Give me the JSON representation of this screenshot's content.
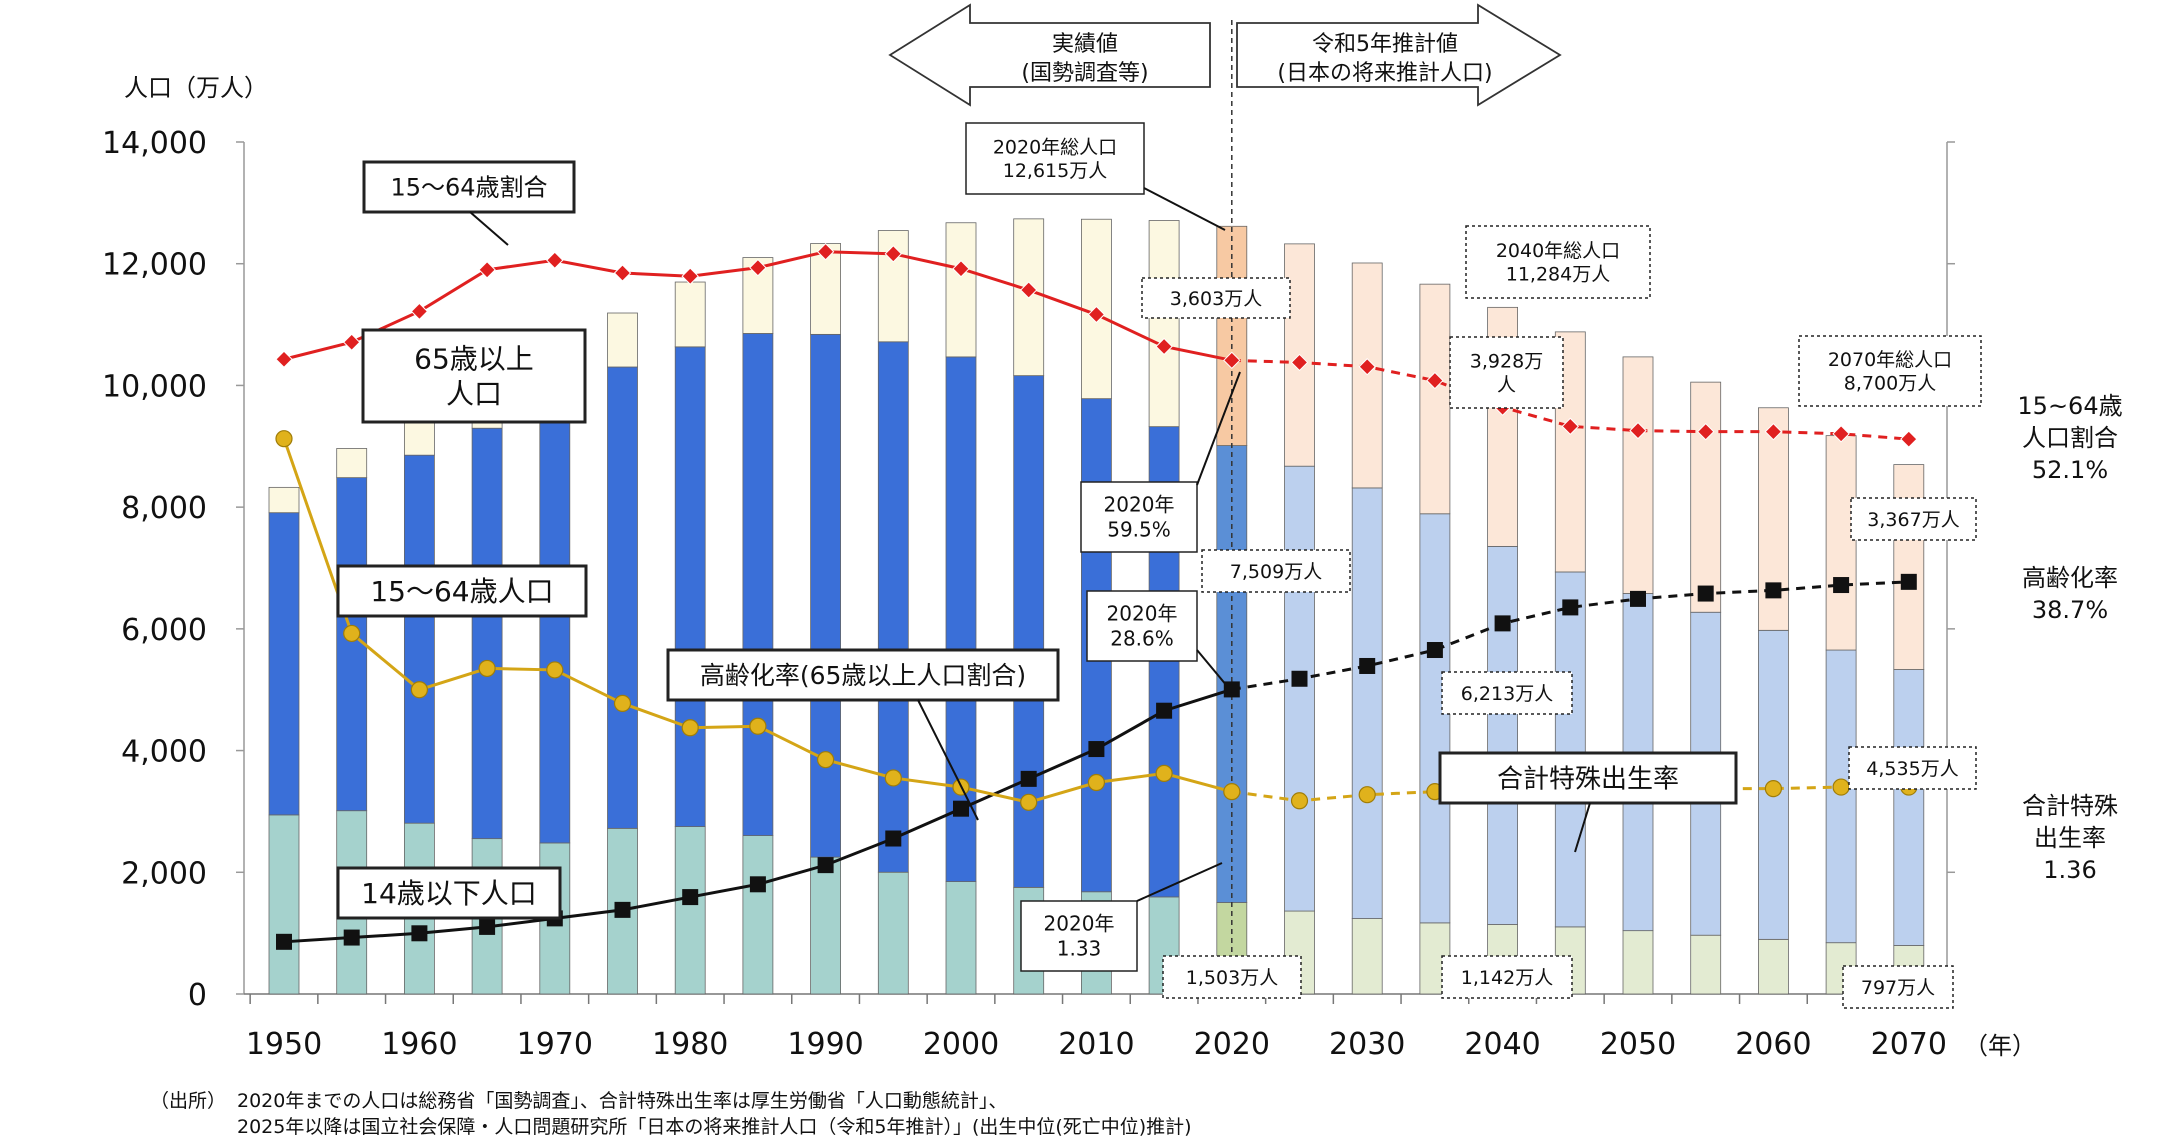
{
  "chart_data": {
    "type": "bar",
    "y_axis": {
      "label": "人口（万人）",
      "min": 0,
      "max": 14000,
      "step": 2000,
      "ticks": [
        "0",
        "2,000",
        "4,000",
        "6,000",
        "8,000",
        "10,000",
        "12,000",
        "14,000"
      ]
    },
    "x_axis": {
      "unit": "（年）",
      "ticks": [
        "1950",
        "1960",
        "1970",
        "1980",
        "1990",
        "2000",
        "2010",
        "2020",
        "2030",
        "2040",
        "2050",
        "2060",
        "2070"
      ]
    },
    "years": [
      1950,
      1955,
      1960,
      1965,
      1970,
      1975,
      1980,
      1985,
      1990,
      1995,
      2000,
      2005,
      2010,
      2015,
      2020,
      2025,
      2030,
      2035,
      2040,
      2045,
      2050,
      2055,
      2060,
      2065,
      2070
    ],
    "series": [
      {
        "name": "14歳以下人口",
        "type": "bar",
        "color": "#a5d2cd",
        "projected_color": "#e3ebd2",
        "highlight_color": "#c3d7a0",
        "values": [
          2943,
          3012,
          2807,
          2553,
          2482,
          2722,
          2751,
          2603,
          2249,
          2001,
          1847,
          1752,
          1680,
          1595,
          1503,
          1363,
          1240,
          1169,
          1142,
          1103,
          1041,
          966,
          898,
          843,
          797
        ]
      },
      {
        "name": "15〜64歳人口",
        "type": "bar",
        "color": "#3a6fd8",
        "projected_color": "#bcd0ee",
        "highlight_color": "#5b8fd6",
        "values": [
          4966,
          5473,
          6047,
          6744,
          7212,
          7581,
          7883,
          8251,
          8590,
          8716,
          8622,
          8409,
          8103,
          7728,
          7509,
          7310,
          7076,
          6722,
          6213,
          5832,
          5540,
          5307,
          5078,
          4809,
          4535
        ]
      },
      {
        "name": "65歳以上人口",
        "type": "bar",
        "color": "#fcf8e1",
        "projected_color": "#fce7d8",
        "highlight_color": "#f7c9a3",
        "values": [
          416,
          479,
          540,
          624,
          739,
          887,
          1065,
          1247,
          1493,
          1828,
          2204,
          2576,
          2948,
          3387,
          3603,
          3653,
          3696,
          3773,
          3928,
          3945,
          3888,
          3781,
          3657,
          3523,
          3367
        ]
      },
      {
        "name": "15~64歳人口割合",
        "type": "line",
        "color": "#e02020",
        "axis": "ratio",
        "values": [
          59.6,
          61.2,
          64.1,
          68.0,
          68.9,
          67.7,
          67.4,
          68.2,
          69.7,
          69.5,
          68.1,
          66.1,
          63.8,
          60.8,
          59.5,
          59.3,
          58.9,
          57.6,
          55.1,
          53.3,
          52.9,
          52.8,
          52.8,
          52.6,
          52.1
        ]
      },
      {
        "name": "高齢化率",
        "type": "line",
        "color": "#111111",
        "axis": "ratio",
        "values": [
          4.9,
          5.3,
          5.7,
          6.3,
          7.1,
          7.9,
          9.1,
          10.3,
          12.1,
          14.6,
          17.4,
          20.2,
          23.0,
          26.6,
          28.6,
          29.6,
          30.8,
          32.3,
          34.8,
          36.3,
          37.1,
          37.6,
          37.9,
          38.4,
          38.7
        ]
      },
      {
        "name": "合計特殊出生率",
        "type": "line",
        "color": "#d4a516",
        "axis": "rate",
        "values": [
          3.65,
          2.37,
          2.0,
          2.14,
          2.13,
          1.91,
          1.75,
          1.76,
          1.54,
          1.42,
          1.36,
          1.26,
          1.39,
          1.45,
          1.33,
          1.27,
          1.31,
          1.33,
          1.33,
          1.34,
          1.35,
          1.35,
          1.35,
          1.36,
          1.36
        ]
      }
    ],
    "axis_notes": {
      "ratio_axis_max_percent": 80,
      "rate_axis_max": 5.6
    },
    "labels": {
      "ratio_series": "15〜64歳割合",
      "elderly_pop": "65歳以上人口",
      "working_pop": "15〜64歳人口",
      "aging_rate": "高齢化率(65歳以上人口割合)",
      "child_pop": "14歳以下人口",
      "tfr": "合計特殊出生率"
    },
    "periods": {
      "actual": [
        "実績値",
        "(国勢調査等)"
      ],
      "projected": [
        "令和5年推計値",
        "(日本の将来推計人口)"
      ]
    },
    "callouts": {
      "total_2020": [
        "2020年総人口",
        "12,615万人"
      ],
      "total_2040": [
        "2040年総人口",
        "11,284万人"
      ],
      "total_2070": [
        "2070年総人口",
        "8,700万人"
      ],
      "elderly_2020": "3,603万人",
      "elderly_2040": [
        "3,928万",
        "人"
      ],
      "elderly_2070": "3,367万人",
      "working_2020": "7,509万人",
      "working_2040": "6,213万人",
      "working_2070": "4,535万人",
      "child_2020": "1,503万人",
      "child_2040": "1,142万人",
      "child_2070": "797万人",
      "ratio_2020": [
        "2020年",
        "59.5%"
      ],
      "aging_2020": [
        "2020年",
        "28.6%"
      ],
      "tfr_2020": [
        "2020年",
        "1.33"
      ]
    },
    "end_labels": {
      "ratio": [
        "15~64歳",
        "人口割合",
        "52.1%"
      ],
      "aging": [
        "高齢化率",
        "38.7%"
      ],
      "tfr": [
        "合計特殊",
        "出生率",
        "1.36"
      ]
    }
  },
  "source": {
    "label": "（出所）",
    "line1": "2020年までの人口は総務省「国勢調査」、合計特殊出生率は厚生労働省「人口動態統計」、",
    "line2": "2025年以降は国立社会保障・人口問題研究所「日本の将来推計人口（令和5年推計）」(出生中位(死亡中位)推計)"
  }
}
